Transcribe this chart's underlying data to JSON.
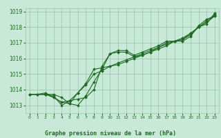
{
  "title": "Graphe pression niveau de la mer (hPa)",
  "background_color": "#c8e8d8",
  "plot_bg_color": "#c8e8d8",
  "grid_color": "#a0c8b0",
  "line_color": "#1a6e1a",
  "marker_color": "#1a6e1a",
  "xlim": [
    -0.5,
    23.5
  ],
  "ylim": [
    1012.5,
    1019.2
  ],
  "yticks": [
    1013,
    1014,
    1015,
    1016,
    1017,
    1018,
    1019
  ],
  "xticks": [
    0,
    1,
    2,
    3,
    4,
    5,
    6,
    7,
    8,
    9,
    10,
    11,
    12,
    13,
    14,
    15,
    16,
    17,
    18,
    19,
    20,
    21,
    22,
    23
  ],
  "series": [
    [
      1013.7,
      1013.7,
      1013.7,
      1013.7,
      1013.5,
      1013.1,
      1013.0,
      1013.6,
      1014.5,
      1015.3,
      1016.3,
      1016.4,
      1016.4,
      1016.1,
      1016.2,
      1016.4,
      1016.6,
      1016.8,
      1017.1,
      1017.1,
      1017.4,
      1018.1,
      1018.5,
      1018.7
    ],
    [
      1013.7,
      1013.7,
      1013.7,
      1013.5,
      1013.2,
      1013.1,
      1013.8,
      1014.4,
      1015.3,
      1015.4,
      1015.5,
      1015.6,
      1015.8,
      1016.0,
      1016.2,
      1016.4,
      1016.7,
      1017.0,
      1017.1,
      1017.2,
      1017.5,
      1018.0,
      1018.4,
      1018.8
    ],
    [
      1013.7,
      1013.7,
      1013.8,
      1013.5,
      1013.2,
      1013.3,
      1013.8,
      1014.3,
      1015.0,
      1015.2,
      1015.5,
      1015.7,
      1015.9,
      1016.1,
      1016.3,
      1016.5,
      1016.7,
      1016.9,
      1017.1,
      1017.3,
      1017.6,
      1018.0,
      1018.3,
      1018.7
    ],
    [
      1013.7,
      1013.7,
      1013.7,
      1013.6,
      1013.0,
      1013.3,
      1013.4,
      1013.5,
      1014.0,
      1015.5,
      1016.3,
      1016.5,
      1016.5,
      1016.2,
      1016.4,
      1016.6,
      1016.8,
      1017.1,
      1017.1,
      1017.2,
      1017.6,
      1018.0,
      1018.2,
      1018.9
    ]
  ]
}
